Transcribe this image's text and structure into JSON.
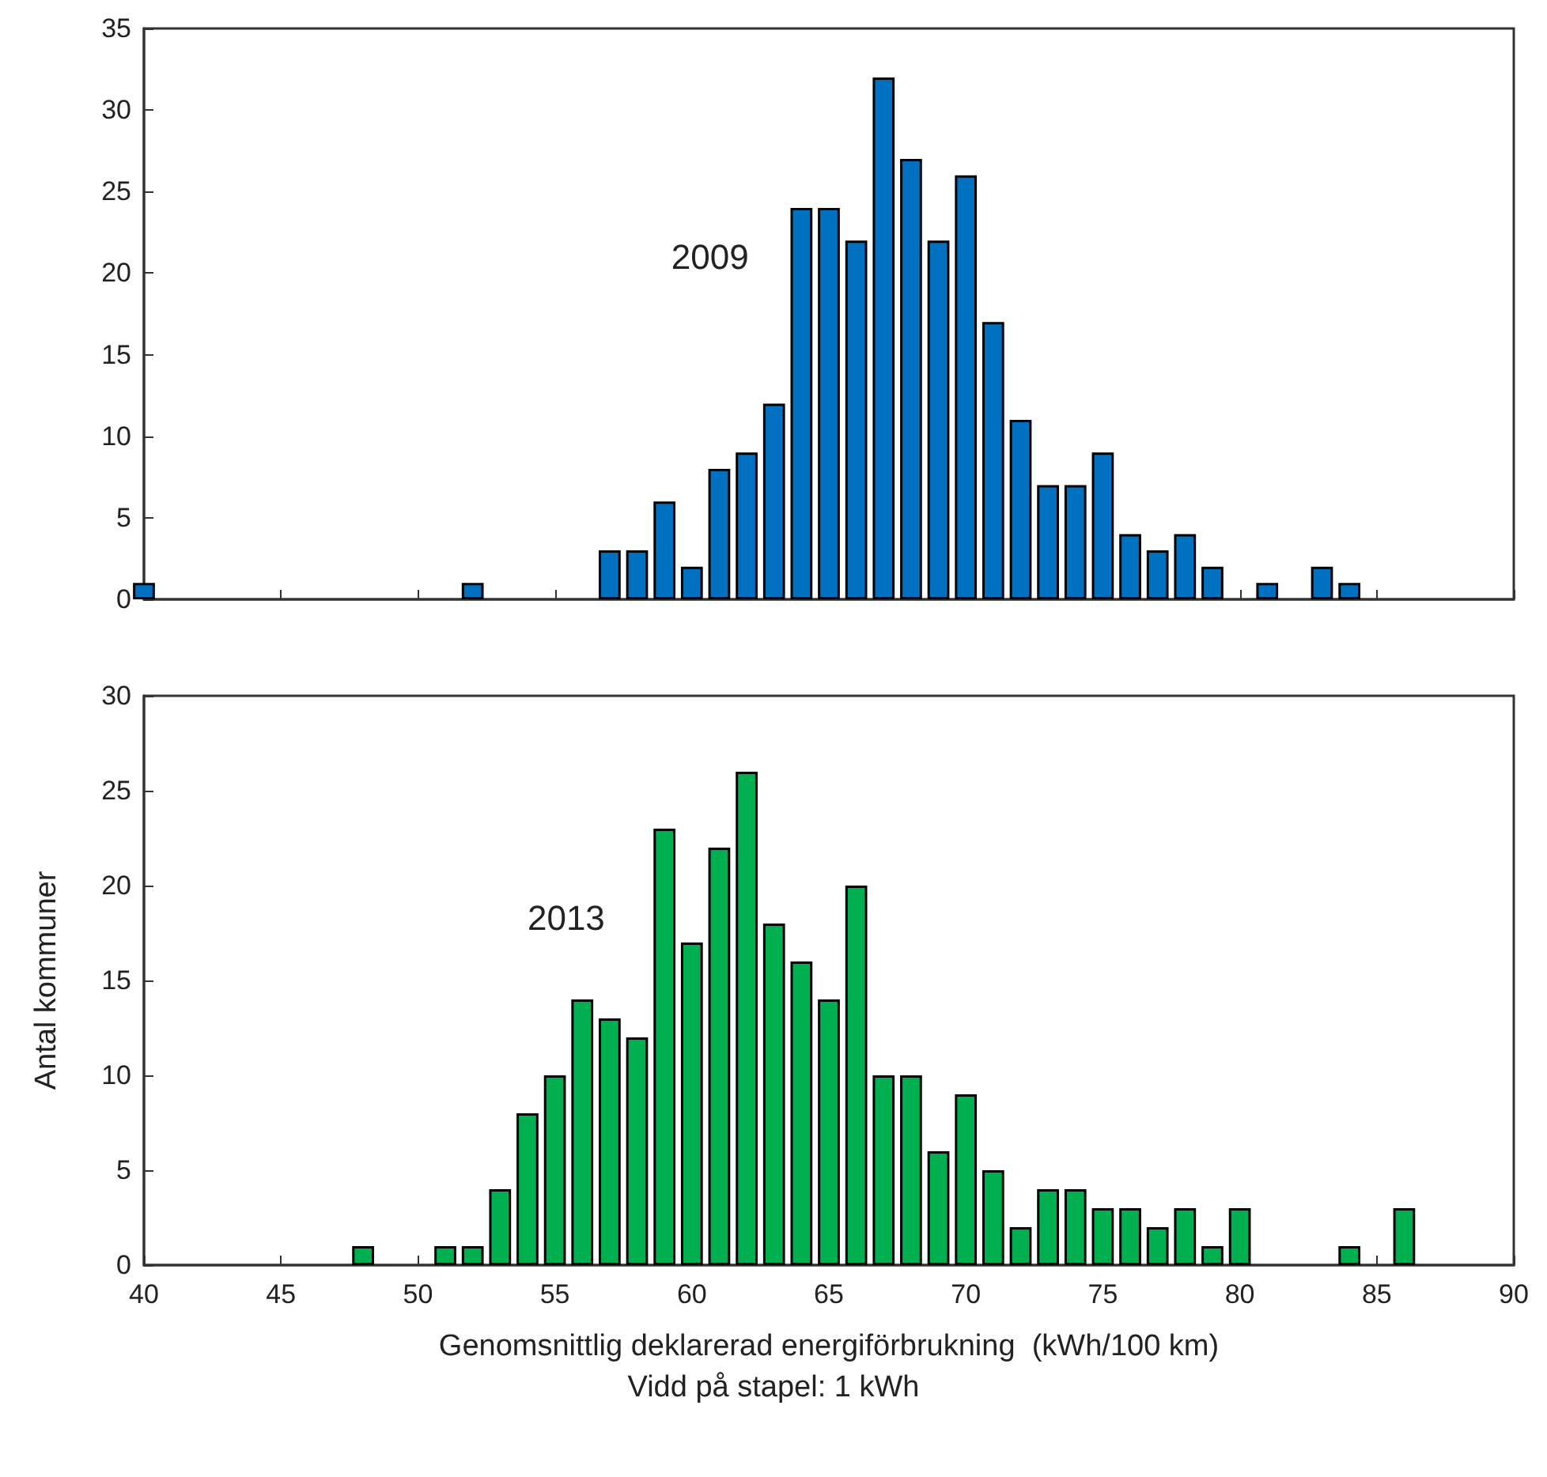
{
  "chart_data": [
    {
      "type": "bar",
      "annotations": [
        "2009"
      ],
      "xlim": [
        40,
        90
      ],
      "xticks": [
        40,
        45,
        50,
        55,
        60,
        65,
        70,
        75,
        80,
        85,
        90
      ],
      "ylim": [
        0,
        35
      ],
      "yticks": [
        0,
        5,
        10,
        15,
        20,
        25,
        30,
        35
      ],
      "tick_labels": "y",
      "grid": false,
      "series": [
        {
          "color": "#0070c0",
          "x": [
            40,
            52,
            57,
            58,
            59,
            60,
            61,
            62,
            63,
            64,
            65,
            66,
            67,
            68,
            69,
            70,
            71,
            72,
            73,
            74,
            75,
            76,
            77,
            78,
            79,
            81,
            83,
            84
          ],
          "values": [
            1,
            1,
            3,
            3,
            6,
            2,
            8,
            9,
            12,
            24,
            24,
            22,
            32,
            27,
            22,
            26,
            17,
            11,
            7,
            7,
            9,
            4,
            3,
            4,
            2,
            1,
            2,
            1
          ]
        }
      ]
    },
    {
      "type": "bar",
      "xlabel": "Genomsnittlig deklarerad energiförbrukning  (kWh/100 km)",
      "ylabel": "Antal kommuner",
      "annotations": [
        "2013",
        "Vidd på stapel: 1 kWh"
      ],
      "xlim": [
        40,
        90
      ],
      "xticks": [
        40,
        45,
        50,
        55,
        60,
        65,
        70,
        75,
        80,
        85,
        90
      ],
      "ylim": [
        0,
        30
      ],
      "yticks": [
        0,
        5,
        10,
        15,
        20,
        25,
        30
      ],
      "grid": false,
      "series": [
        {
          "color": "#00b050",
          "x": [
            48,
            51,
            52,
            53,
            54,
            55,
            56,
            57,
            58,
            59,
            60,
            61,
            62,
            63,
            64,
            65,
            66,
            67,
            68,
            69,
            70,
            71,
            72,
            73,
            74,
            75,
            76,
            77,
            78,
            79,
            80,
            84,
            86
          ],
          "values": [
            1,
            1,
            1,
            4,
            8,
            10,
            14,
            13,
            12,
            23,
            17,
            22,
            26,
            18,
            16,
            14,
            20,
            10,
            10,
            6,
            9,
            5,
            2,
            4,
            4,
            3,
            3,
            2,
            3,
            1,
            3,
            1,
            3
          ]
        }
      ]
    }
  ]
}
